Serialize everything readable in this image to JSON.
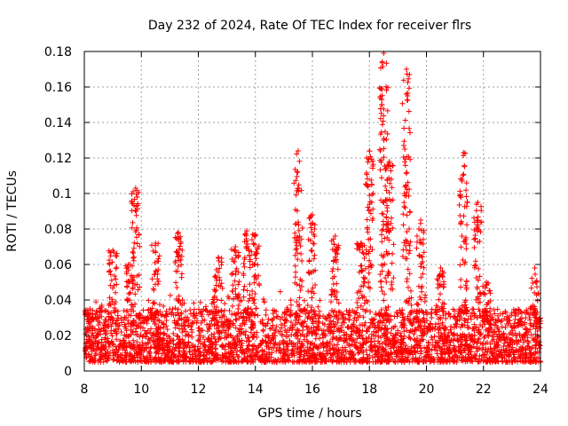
{
  "chart_data": {
    "type": "scatter",
    "title": "Day 232 of 2024, Rate Of TEC Index for receiver flrs",
    "xlabel": "GPS time / hours",
    "ylabel": "ROTI / TECUs",
    "xlim": [
      8,
      24
    ],
    "ylim": [
      0,
      0.18
    ],
    "x_ticks": [
      "8",
      "10",
      "12",
      "14",
      "16",
      "18",
      "20",
      "22",
      "24"
    ],
    "y_ticks": [
      "0",
      "0.02",
      "0.04",
      "0.06",
      "0.08",
      "0.1",
      "0.12",
      "0.14",
      "0.16",
      "0.18"
    ],
    "grid": true,
    "marker": "+",
    "series": [
      {
        "name": "ROTI",
        "color": "#ff0000",
        "description": "Dense cloud of ROTI samples, mostly 0.005–0.035 TECU/s, with spikes",
        "baseline": {
          "x_range": [
            8,
            24
          ],
          "y_range": [
            0.005,
            0.035
          ]
        },
        "clusters": [
          {
            "x": 8.2,
            "peak": 0.035
          },
          {
            "x": 9.0,
            "peak": 0.068
          },
          {
            "x": 9.6,
            "peak": 0.06
          },
          {
            "x": 9.8,
            "peak": 0.103
          },
          {
            "x": 10.5,
            "peak": 0.072
          },
          {
            "x": 11.3,
            "peak": 0.078
          },
          {
            "x": 12.7,
            "peak": 0.064
          },
          {
            "x": 13.3,
            "peak": 0.07
          },
          {
            "x": 13.7,
            "peak": 0.079
          },
          {
            "x": 14.0,
            "peak": 0.077
          },
          {
            "x": 15.5,
            "peak": 0.124
          },
          {
            "x": 16.0,
            "peak": 0.088
          },
          {
            "x": 16.8,
            "peak": 0.076
          },
          {
            "x": 17.7,
            "peak": 0.072
          },
          {
            "x": 18.0,
            "peak": 0.124
          },
          {
            "x": 18.5,
            "peak": 0.179
          },
          {
            "x": 18.7,
            "peak": 0.118
          },
          {
            "x": 19.3,
            "peak": 0.17
          },
          {
            "x": 19.8,
            "peak": 0.085
          },
          {
            "x": 20.5,
            "peak": 0.058
          },
          {
            "x": 21.3,
            "peak": 0.123
          },
          {
            "x": 21.8,
            "peak": 0.095
          },
          {
            "x": 22.1,
            "peak": 0.05
          },
          {
            "x": 23.8,
            "peak": 0.058
          }
        ]
      }
    ]
  }
}
